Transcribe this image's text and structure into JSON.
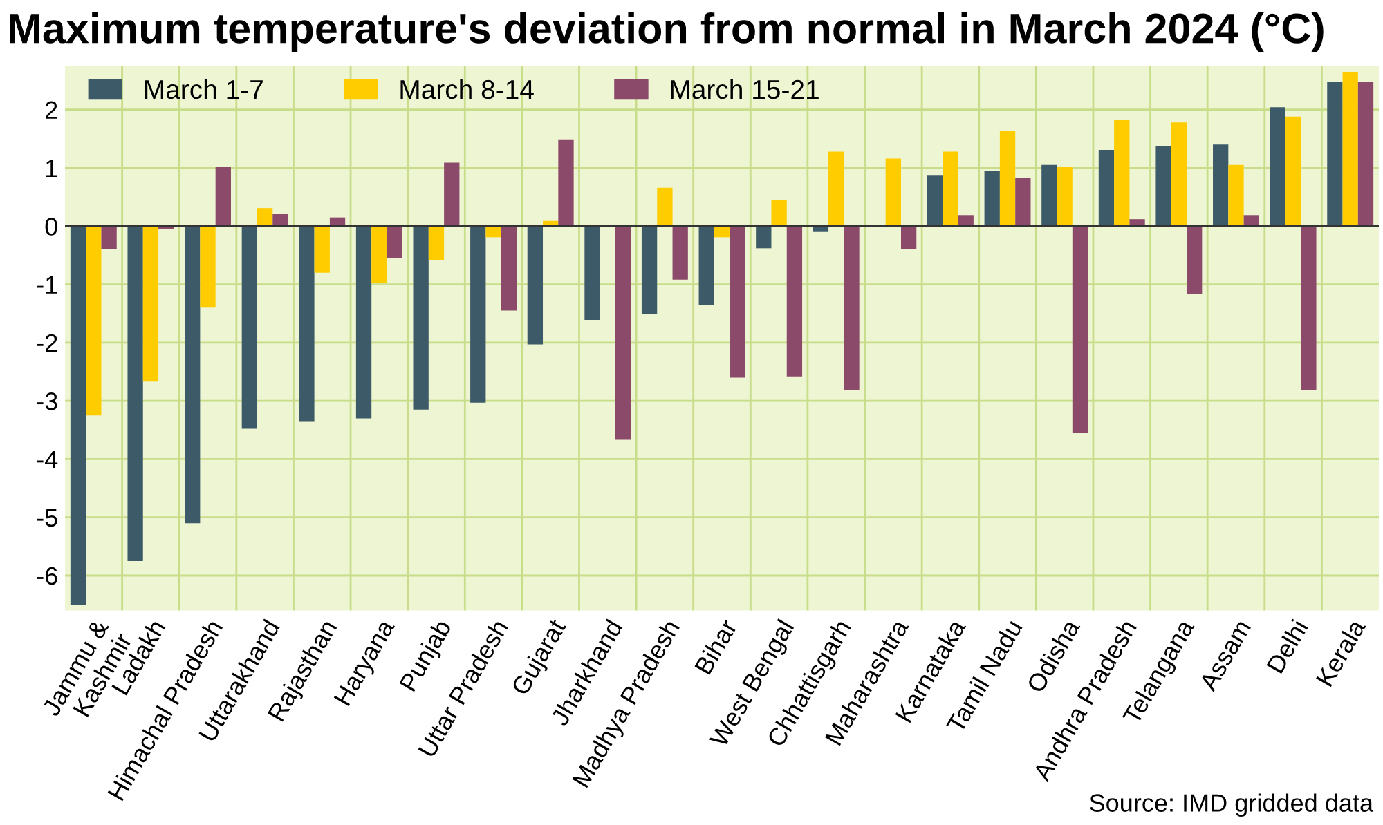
{
  "chart_data": {
    "type": "bar",
    "title": "Maximum temperature's deviation from normal in March 2024 (°C)",
    "categories": [
      "Jammu &\nKashmir",
      "Ladakh",
      "Himachal Pradesh",
      "Uttarakhand",
      "Rajasthan",
      "Haryana",
      "Punjab",
      "Uttar Pradesh",
      "Gujarat",
      "Jharkhand",
      "Madhya Pradesh",
      "Bihar",
      "West Bengal",
      "Chhattisgarh",
      "Maharashtra",
      "Karnataka",
      "Tamil Nadu",
      "Odisha",
      "Andhra Pradesh",
      "Telangana",
      "Assam",
      "Delhi",
      "Kerala"
    ],
    "series": [
      {
        "name": "March 1-7",
        "color": "#3d5a68",
        "values": [
          -6.5,
          -5.75,
          -5.1,
          -3.48,
          -3.36,
          -3.3,
          -3.15,
          -3.03,
          -2.03,
          -1.61,
          -1.51,
          -1.35,
          -0.38,
          -0.1,
          0,
          0.88,
          0.95,
          1.05,
          1.31,
          1.38,
          1.4,
          2.04,
          2.47
        ]
      },
      {
        "name": "March 8-14",
        "color": "#ffcc00",
        "values": [
          -3.25,
          -2.67,
          -1.4,
          0.31,
          -0.8,
          -0.97,
          -0.59,
          -0.19,
          0.09,
          0,
          0.66,
          -0.19,
          0.45,
          1.28,
          1.16,
          1.28,
          1.64,
          1.02,
          1.83,
          1.78,
          1.05,
          1.88,
          2.65
        ]
      },
      {
        "name": "March 15-21",
        "color": "#8b4a6a",
        "values": [
          -0.4,
          -0.05,
          1.02,
          0.21,
          0.15,
          -0.55,
          1.09,
          -1.45,
          1.49,
          -3.67,
          -0.92,
          -2.6,
          -2.58,
          -2.82,
          -0.4,
          0.19,
          0.83,
          -3.55,
          0.12,
          -1.17,
          0.19,
          -2.82,
          2.47
        ]
      }
    ],
    "ylim": [
      -6.6,
      2.75
    ],
    "yticks": [
      {
        "value": -6,
        "label": "-6"
      },
      {
        "value": -5,
        "label": "-5"
      },
      {
        "value": -4,
        "label": "-4"
      },
      {
        "value": -3,
        "label": "-3"
      },
      {
        "value": -2,
        "label": "-2"
      },
      {
        "value": -1,
        "label": "-1"
      },
      0,
      1,
      2
    ],
    "grid": true,
    "legend": "top left",
    "annotations": [
      "Source: IMD gridded data"
    ]
  }
}
